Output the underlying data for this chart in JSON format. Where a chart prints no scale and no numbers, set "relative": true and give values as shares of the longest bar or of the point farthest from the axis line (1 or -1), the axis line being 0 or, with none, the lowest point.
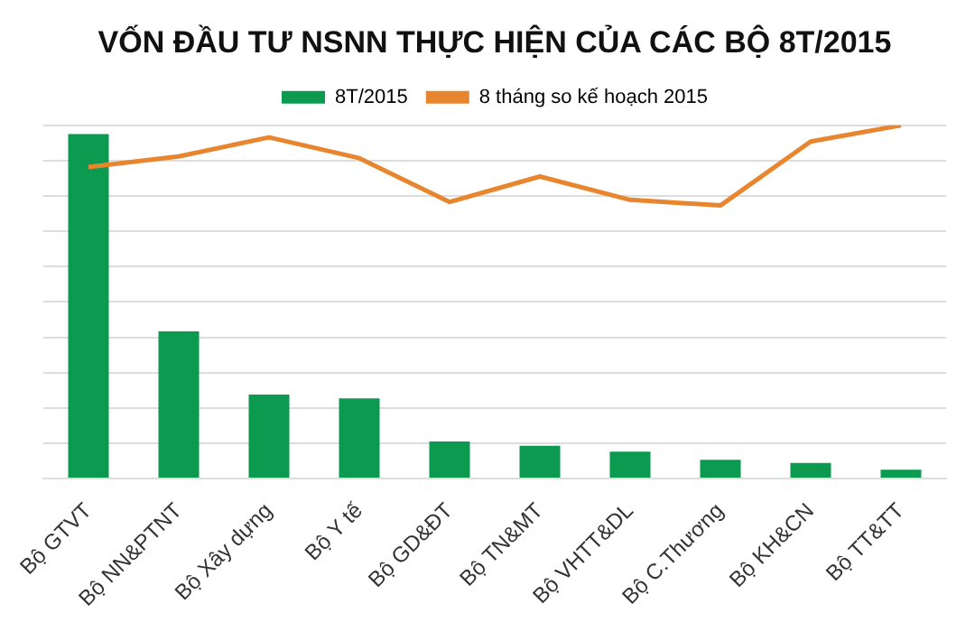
{
  "chart_data": {
    "type": "bar",
    "title": "VỐN ĐẦU TƯ NSNN THỰC HIỆN CỦA CÁC BỘ 8T/2015",
    "relative": true,
    "legend": "top",
    "grid": "y",
    "categories": [
      "Bộ GTVT",
      "Bộ NN&PTNT",
      "Bộ Xây dựng",
      "Bộ Y tế",
      "Bộ GD&ĐT",
      "Bộ TN&MT",
      "Bộ VHTT&DL",
      "Bộ C.Thương",
      "Bộ KH&CN",
      "Bộ TT&TT"
    ],
    "series": [
      {
        "name": "8T/2015",
        "color": "#0b9a4f",
        "values": [
          0.975,
          0.417,
          0.238,
          0.227,
          0.105,
          0.093,
          0.076,
          0.053,
          0.044,
          0.025
        ]
      },
      {
        "name": "8 tháng so kế hoạch 2015",
        "type": "line",
        "color": "#e8862f",
        "values": [
          0.882,
          0.912,
          0.966,
          0.907,
          0.783,
          0.855,
          0.789,
          0.773,
          0.954,
          1
        ]
      }
    ]
  }
}
